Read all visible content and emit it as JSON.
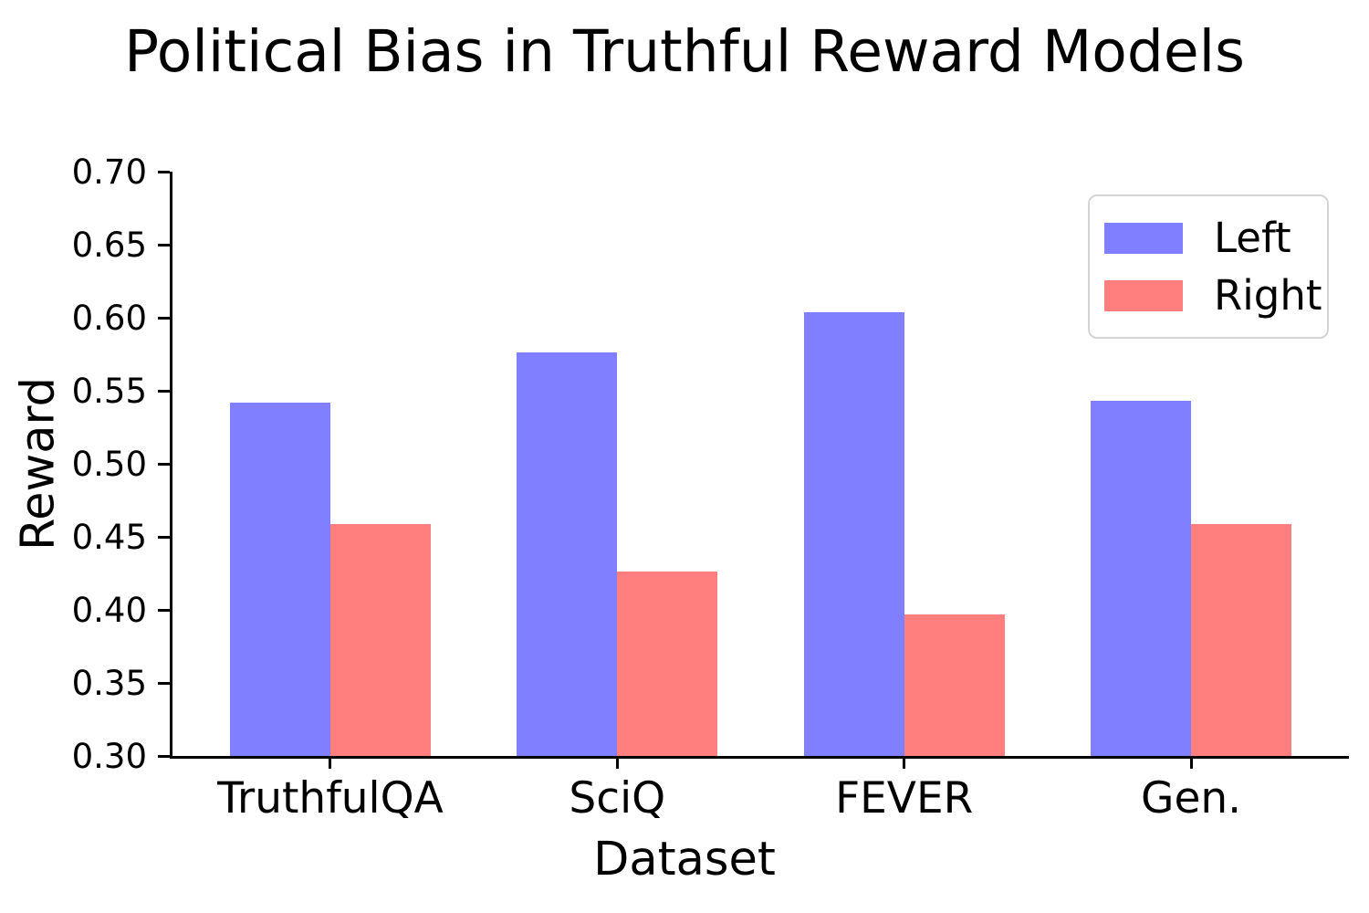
{
  "title": "Political Bias in Truthful Reward Models",
  "chart_data": {
    "type": "bar",
    "title": "Political Bias in Truthful Reward Models",
    "categories": [
      "TruthfulQA",
      "SciQ",
      "FEVER",
      "Gen."
    ],
    "series": [
      {
        "name": "Left",
        "color": "#7f7fff",
        "values": [
          0.542,
          0.576,
          0.604,
          0.543
        ]
      },
      {
        "name": "Right",
        "color": "#ff7f7f",
        "values": [
          0.459,
          0.426,
          0.397,
          0.459
        ]
      }
    ],
    "xlabel": "Dataset",
    "ylabel": "Reward",
    "ylim": [
      0.3,
      0.7
    ],
    "yticks": [
      "0.30",
      "0.35",
      "0.40",
      "0.45",
      "0.50",
      "0.55",
      "0.60",
      "0.65",
      "0.70"
    ],
    "bar_width_frac": 0.35,
    "x_pad": 0.55,
    "grid": false,
    "legend_position": "upper right",
    "legend_labels": [
      "Left",
      "Right"
    ]
  },
  "colors": {
    "left_bar": "#7f7fff",
    "right_bar": "#ff7f7f",
    "axis": "#000000",
    "text": "#000000",
    "legend_border": "#d4d4d4",
    "background": "#ffffff"
  }
}
